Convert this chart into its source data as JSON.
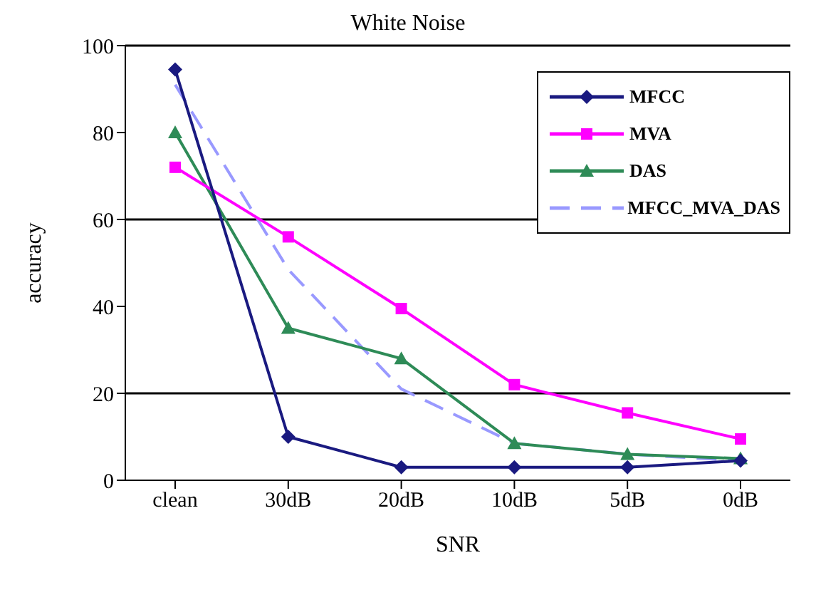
{
  "chart_data": {
    "type": "line",
    "title": "White Noise",
    "xlabel": "SNR",
    "ylabel": "accuracy",
    "categories": [
      "clean",
      "30dB",
      "20dB",
      "10dB",
      "5dB",
      "0dB"
    ],
    "series": [
      {
        "name": "MFCC",
        "color": "#1a1a80",
        "marker": "diamond",
        "values": [
          94.5,
          10,
          3,
          3,
          3,
          4.5
        ]
      },
      {
        "name": "MVA",
        "color": "#ff00ff",
        "marker": "square",
        "values": [
          72,
          56,
          39.5,
          22,
          15.5,
          9.5
        ]
      },
      {
        "name": "DAS",
        "color": "#2e8b57",
        "marker": "triangle",
        "values": [
          80,
          35,
          28,
          8.5,
          6,
          5
        ]
      },
      {
        "name": "MFCC_MVA_DAS",
        "color": "#9999ff",
        "marker": "none",
        "line_style": "dashed",
        "values": [
          91,
          48.5,
          21,
          8.5,
          6,
          4.5
        ]
      }
    ],
    "ylim": [
      0,
      100
    ],
    "yticks": [
      0,
      20,
      40,
      60,
      80,
      100
    ],
    "grid": false,
    "ref_lines": [
      {
        "axis": "y",
        "value": 20,
        "color": "#000000"
      },
      {
        "axis": "y",
        "value": 60,
        "color": "#000000"
      }
    ],
    "legend": "top right"
  }
}
